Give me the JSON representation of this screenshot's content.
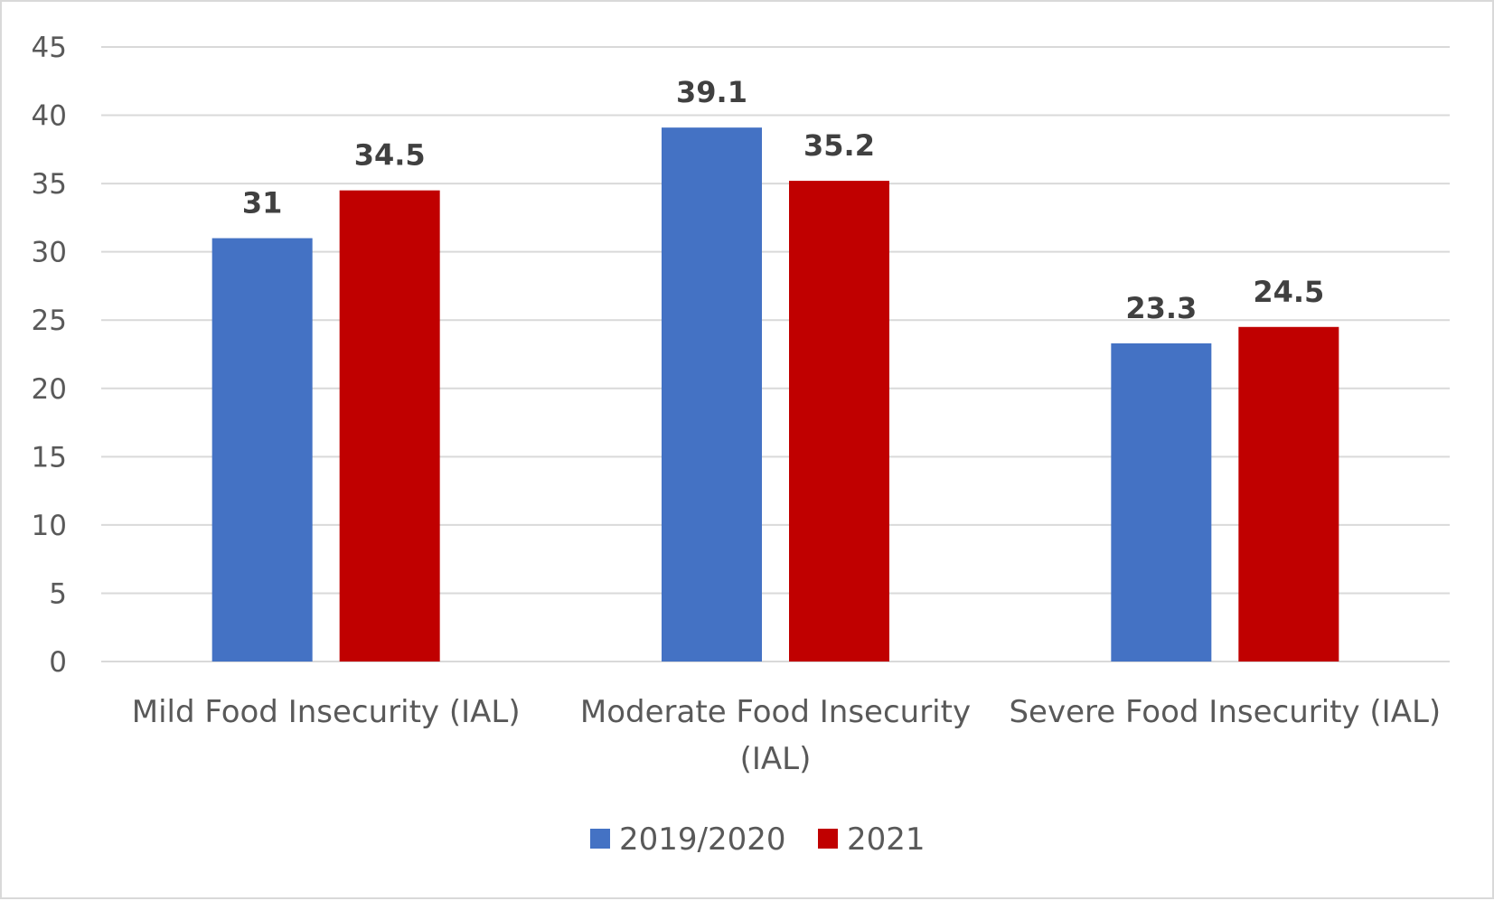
{
  "chart_data": {
    "type": "bar",
    "title": "",
    "xlabel": "",
    "ylabel": "",
    "ylim": [
      0,
      45
    ],
    "yticks": [
      0,
      5,
      10,
      15,
      20,
      25,
      30,
      35,
      40,
      45
    ],
    "grid": true,
    "legend_position": "bottom",
    "categories": [
      [
        "Mild Food Insecurity (IAL)"
      ],
      [
        "Moderate Food Insecurity",
        "(IAL)"
      ],
      [
        "Severe Food Insecurity (IAL)"
      ]
    ],
    "series": [
      {
        "name": "2019/2020",
        "color": "#4472c4",
        "values": [
          31,
          39.1,
          23.3
        ],
        "labels": [
          "31",
          "39.1",
          "23.3"
        ]
      },
      {
        "name": "2021",
        "color": "#c00000",
        "values": [
          34.5,
          35.2,
          24.5
        ],
        "labels": [
          "34.5",
          "35.2",
          "24.5"
        ]
      }
    ]
  }
}
